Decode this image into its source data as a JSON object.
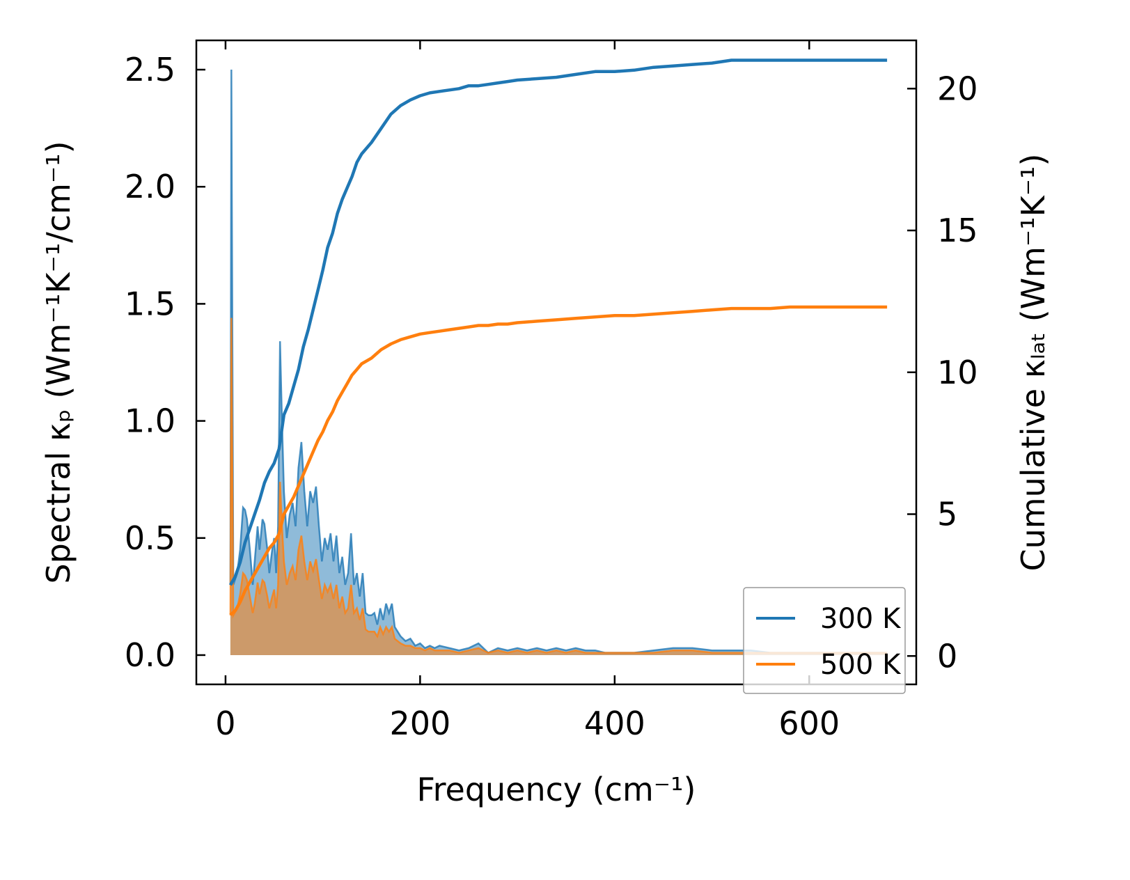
{
  "chart_data": {
    "type": "line",
    "xlabel": "Frequency (cm⁻¹)",
    "ylabel_left": "Spectral κₚ (Wm⁻¹K⁻¹/cm⁻¹)",
    "ylabel_right": "Cumulative κₗₐₜ (Wm⁻¹K⁻¹)",
    "xlim": [
      -30,
      710
    ],
    "ylim_left": [
      -0.125,
      2.625
    ],
    "ylim_right": [
      -1.0,
      21.7
    ],
    "x_ticks": [
      0,
      200,
      400,
      600
    ],
    "x_tick_labels": [
      "0",
      "200",
      "400",
      "600"
    ],
    "y_left_ticks": [
      0.0,
      0.5,
      1.0,
      1.5,
      2.0,
      2.5
    ],
    "y_left_tick_labels": [
      "0.0",
      "0.5",
      "1.0",
      "1.5",
      "2.0",
      "2.5"
    ],
    "y_right_ticks": [
      0,
      5,
      10,
      15,
      20
    ],
    "y_right_tick_labels": [
      "0",
      "5",
      "10",
      "15",
      "20"
    ],
    "legend_position": "lower-right",
    "series": [
      {
        "name": "300 K",
        "color": "#1f77b4",
        "spectral": {
          "x": [
            5,
            6,
            8,
            12,
            15,
            18,
            20,
            22,
            25,
            28,
            30,
            33,
            35,
            38,
            40,
            43,
            45,
            48,
            50,
            52,
            54,
            56,
            58,
            60,
            63,
            66,
            69,
            72,
            75,
            78,
            81,
            84,
            87,
            90,
            93,
            96,
            99,
            102,
            105,
            108,
            111,
            114,
            117,
            120,
            123,
            126,
            129,
            132,
            135,
            138,
            141,
            144,
            147,
            150,
            153,
            156,
            159,
            162,
            165,
            168,
            171,
            174,
            177,
            180,
            185,
            190,
            195,
            200,
            205,
            210,
            215,
            220,
            230,
            240,
            250,
            260,
            270,
            280,
            290,
            300,
            310,
            320,
            330,
            340,
            350,
            360,
            370,
            380,
            390,
            400,
            420,
            440,
            460,
            480,
            500,
            520,
            540,
            560,
            580,
            600,
            620,
            640,
            660,
            680
          ],
          "y": [
            0.3,
            2.5,
            0.3,
            0.35,
            0.45,
            0.63,
            0.62,
            0.58,
            0.45,
            0.3,
            0.4,
            0.55,
            0.45,
            0.58,
            0.56,
            0.45,
            0.35,
            0.45,
            0.5,
            0.35,
            0.55,
            1.34,
            1.0,
            0.7,
            0.5,
            0.6,
            0.65,
            0.55,
            0.8,
            0.91,
            0.7,
            0.55,
            0.7,
            0.65,
            0.72,
            0.55,
            0.4,
            0.5,
            0.45,
            0.52,
            0.4,
            0.51,
            0.35,
            0.42,
            0.3,
            0.35,
            0.52,
            0.3,
            0.35,
            0.25,
            0.35,
            0.18,
            0.17,
            0.17,
            0.18,
            0.13,
            0.2,
            0.15,
            0.22,
            0.18,
            0.22,
            0.12,
            0.1,
            0.08,
            0.06,
            0.07,
            0.04,
            0.05,
            0.03,
            0.04,
            0.03,
            0.04,
            0.03,
            0.02,
            0.03,
            0.05,
            0.01,
            0.03,
            0.02,
            0.03,
            0.02,
            0.03,
            0.02,
            0.03,
            0.02,
            0.03,
            0.02,
            0.02,
            0.01,
            0.01,
            0.01,
            0.02,
            0.03,
            0.03,
            0.02,
            0.02,
            0.02,
            0.01,
            0.01,
            0.01,
            0.01,
            0.01,
            0.01,
            0.01
          ]
        },
        "cumulative": {
          "x": [
            5,
            10,
            15,
            20,
            25,
            30,
            35,
            40,
            45,
            50,
            55,
            60,
            65,
            70,
            75,
            80,
            85,
            90,
            95,
            100,
            105,
            110,
            115,
            120,
            125,
            130,
            135,
            140,
            150,
            160,
            170,
            180,
            190,
            200,
            210,
            220,
            230,
            240,
            250,
            260,
            270,
            280,
            290,
            300,
            320,
            340,
            360,
            380,
            400,
            420,
            440,
            460,
            480,
            500,
            520,
            540,
            560,
            580,
            600,
            620,
            640,
            660,
            680
          ],
          "y": [
            2.5,
            2.8,
            3.3,
            4.0,
            4.5,
            5.0,
            5.5,
            6.1,
            6.5,
            6.8,
            7.3,
            8.5,
            8.9,
            9.5,
            10.1,
            10.9,
            11.5,
            12.2,
            12.9,
            13.6,
            14.4,
            14.9,
            15.6,
            16.1,
            16.5,
            16.9,
            17.4,
            17.7,
            18.1,
            18.6,
            19.1,
            19.4,
            19.6,
            19.75,
            19.85,
            19.9,
            19.95,
            20.0,
            20.1,
            20.1,
            20.15,
            20.2,
            20.25,
            20.3,
            20.35,
            20.4,
            20.5,
            20.6,
            20.6,
            20.65,
            20.75,
            20.8,
            20.85,
            20.9,
            21.0,
            21.0,
            21.0,
            21.0,
            21.0,
            21.0,
            21.0,
            21.0,
            21.0
          ]
        }
      },
      {
        "name": "500 K",
        "color": "#ff7f0e",
        "spectral": {
          "x": [
            5,
            6,
            8,
            12,
            15,
            18,
            20,
            22,
            25,
            28,
            30,
            33,
            35,
            38,
            40,
            43,
            45,
            48,
            50,
            52,
            54,
            56,
            58,
            60,
            63,
            66,
            69,
            72,
            75,
            78,
            81,
            84,
            87,
            90,
            93,
            96,
            99,
            102,
            105,
            108,
            111,
            114,
            117,
            120,
            123,
            126,
            129,
            132,
            135,
            138,
            141,
            144,
            147,
            150,
            153,
            156,
            159,
            162,
            165,
            168,
            171,
            174,
            177,
            180,
            185,
            190,
            195,
            200,
            205,
            210,
            215,
            220,
            230,
            240,
            250,
            260,
            270,
            280,
            290,
            300,
            310,
            320,
            330,
            340,
            350,
            360,
            370,
            380,
            390,
            400,
            420,
            440,
            460,
            480,
            500,
            520,
            540,
            560,
            580,
            600,
            620,
            640,
            660,
            680
          ],
          "y": [
            0.17,
            1.44,
            0.17,
            0.2,
            0.26,
            0.35,
            0.34,
            0.32,
            0.25,
            0.18,
            0.22,
            0.31,
            0.26,
            0.32,
            0.31,
            0.25,
            0.2,
            0.25,
            0.28,
            0.2,
            0.3,
            0.74,
            0.55,
            0.4,
            0.3,
            0.35,
            0.38,
            0.32,
            0.45,
            0.51,
            0.4,
            0.32,
            0.4,
            0.36,
            0.41,
            0.32,
            0.24,
            0.3,
            0.27,
            0.3,
            0.24,
            0.3,
            0.2,
            0.25,
            0.18,
            0.2,
            0.3,
            0.18,
            0.2,
            0.15,
            0.2,
            0.11,
            0.1,
            0.1,
            0.1,
            0.08,
            0.12,
            0.09,
            0.12,
            0.1,
            0.12,
            0.07,
            0.06,
            0.05,
            0.04,
            0.04,
            0.03,
            0.03,
            0.02,
            0.03,
            0.02,
            0.02,
            0.02,
            0.01,
            0.02,
            0.03,
            0.01,
            0.02,
            0.01,
            0.02,
            0.01,
            0.02,
            0.01,
            0.02,
            0.01,
            0.02,
            0.01,
            0.01,
            0.01,
            0.01,
            0.01,
            0.01,
            0.02,
            0.02,
            0.01,
            0.01,
            0.01,
            0.01,
            0.01,
            0.01,
            0.01,
            0.01,
            0.01,
            0.01
          ]
        },
        "cumulative": {
          "x": [
            5,
            10,
            15,
            20,
            25,
            30,
            35,
            40,
            45,
            50,
            55,
            60,
            65,
            70,
            75,
            80,
            85,
            90,
            95,
            100,
            105,
            110,
            115,
            120,
            125,
            130,
            135,
            140,
            150,
            160,
            170,
            180,
            190,
            200,
            210,
            220,
            230,
            240,
            250,
            260,
            270,
            280,
            290,
            300,
            320,
            340,
            360,
            380,
            400,
            420,
            440,
            460,
            480,
            500,
            520,
            540,
            560,
            580,
            600,
            620,
            640,
            660,
            680
          ],
          "y": [
            1.45,
            1.6,
            1.9,
            2.3,
            2.6,
            2.9,
            3.2,
            3.5,
            3.8,
            4.0,
            4.3,
            5.0,
            5.3,
            5.6,
            6.0,
            6.4,
            6.8,
            7.2,
            7.6,
            7.9,
            8.3,
            8.6,
            9.0,
            9.3,
            9.6,
            9.9,
            10.1,
            10.3,
            10.5,
            10.8,
            11.0,
            11.15,
            11.25,
            11.35,
            11.4,
            11.45,
            11.5,
            11.55,
            11.6,
            11.65,
            11.65,
            11.7,
            11.7,
            11.75,
            11.8,
            11.85,
            11.9,
            11.95,
            12.0,
            12.0,
            12.05,
            12.1,
            12.15,
            12.2,
            12.25,
            12.25,
            12.25,
            12.3,
            12.3,
            12.3,
            12.3,
            12.3,
            12.3
          ]
        }
      }
    ]
  }
}
